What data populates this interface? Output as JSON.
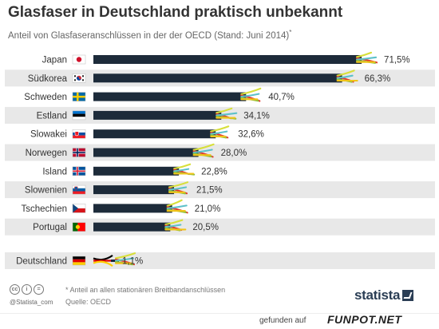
{
  "header": {
    "title": "Glasfaser in Deutschland praktisch unbekannt",
    "subtitle": "Anteil von Glasfaseranschlüssen in der der OECD (Stand: Juni 2014)",
    "subtitle_marker": "*"
  },
  "chart_data": {
    "type": "bar",
    "orientation": "horizontal",
    "title": "Glasfaser in Deutschland praktisch unbekannt",
    "xlim": [
      0,
      100
    ],
    "categories": [
      "Japan",
      "Südkorea",
      "Schweden",
      "Estland",
      "Slowakei",
      "Norwegen",
      "Island",
      "Slowenien",
      "Tschechien",
      "Portugal",
      "Deutschland"
    ],
    "values": [
      71.5,
      66.3,
      40.7,
      34.1,
      32.6,
      28.0,
      22.8,
      21.5,
      21.0,
      20.5,
      1.1
    ],
    "value_labels": [
      "71,5%",
      "66,3%",
      "40,7%",
      "34,1%",
      "32,6%",
      "28,0%",
      "22,8%",
      "21,5%",
      "21,0%",
      "20,5%",
      "1,1%"
    ],
    "flags": [
      "japan-flag-icon",
      "south-korea-flag-icon",
      "sweden-flag-icon",
      "estonia-flag-icon",
      "slovakia-flag-icon",
      "norway-flag-icon",
      "iceland-flag-icon",
      "slovenia-flag-icon",
      "czech-flag-icon",
      "portugal-flag-icon",
      "germany-flag-icon"
    ],
    "bar_color": "#1d2b3a",
    "row_alt_color": "#e8e8e8",
    "fiber_colors": [
      "#d7df3a",
      "#e23b2e",
      "#5cc1c9",
      "#8fbf3c",
      "#f0c419"
    ]
  },
  "footer": {
    "cc_icons": [
      "cc",
      "by",
      "nd"
    ],
    "handle": "@Statista_com",
    "note": "* Anteil an allen stationären Breitbandanschlüssen",
    "source": "Quelle: OECD",
    "logo": "statista"
  },
  "watermark": {
    "text": "gefunden auf",
    "logo": "FUNPOT.NET"
  }
}
